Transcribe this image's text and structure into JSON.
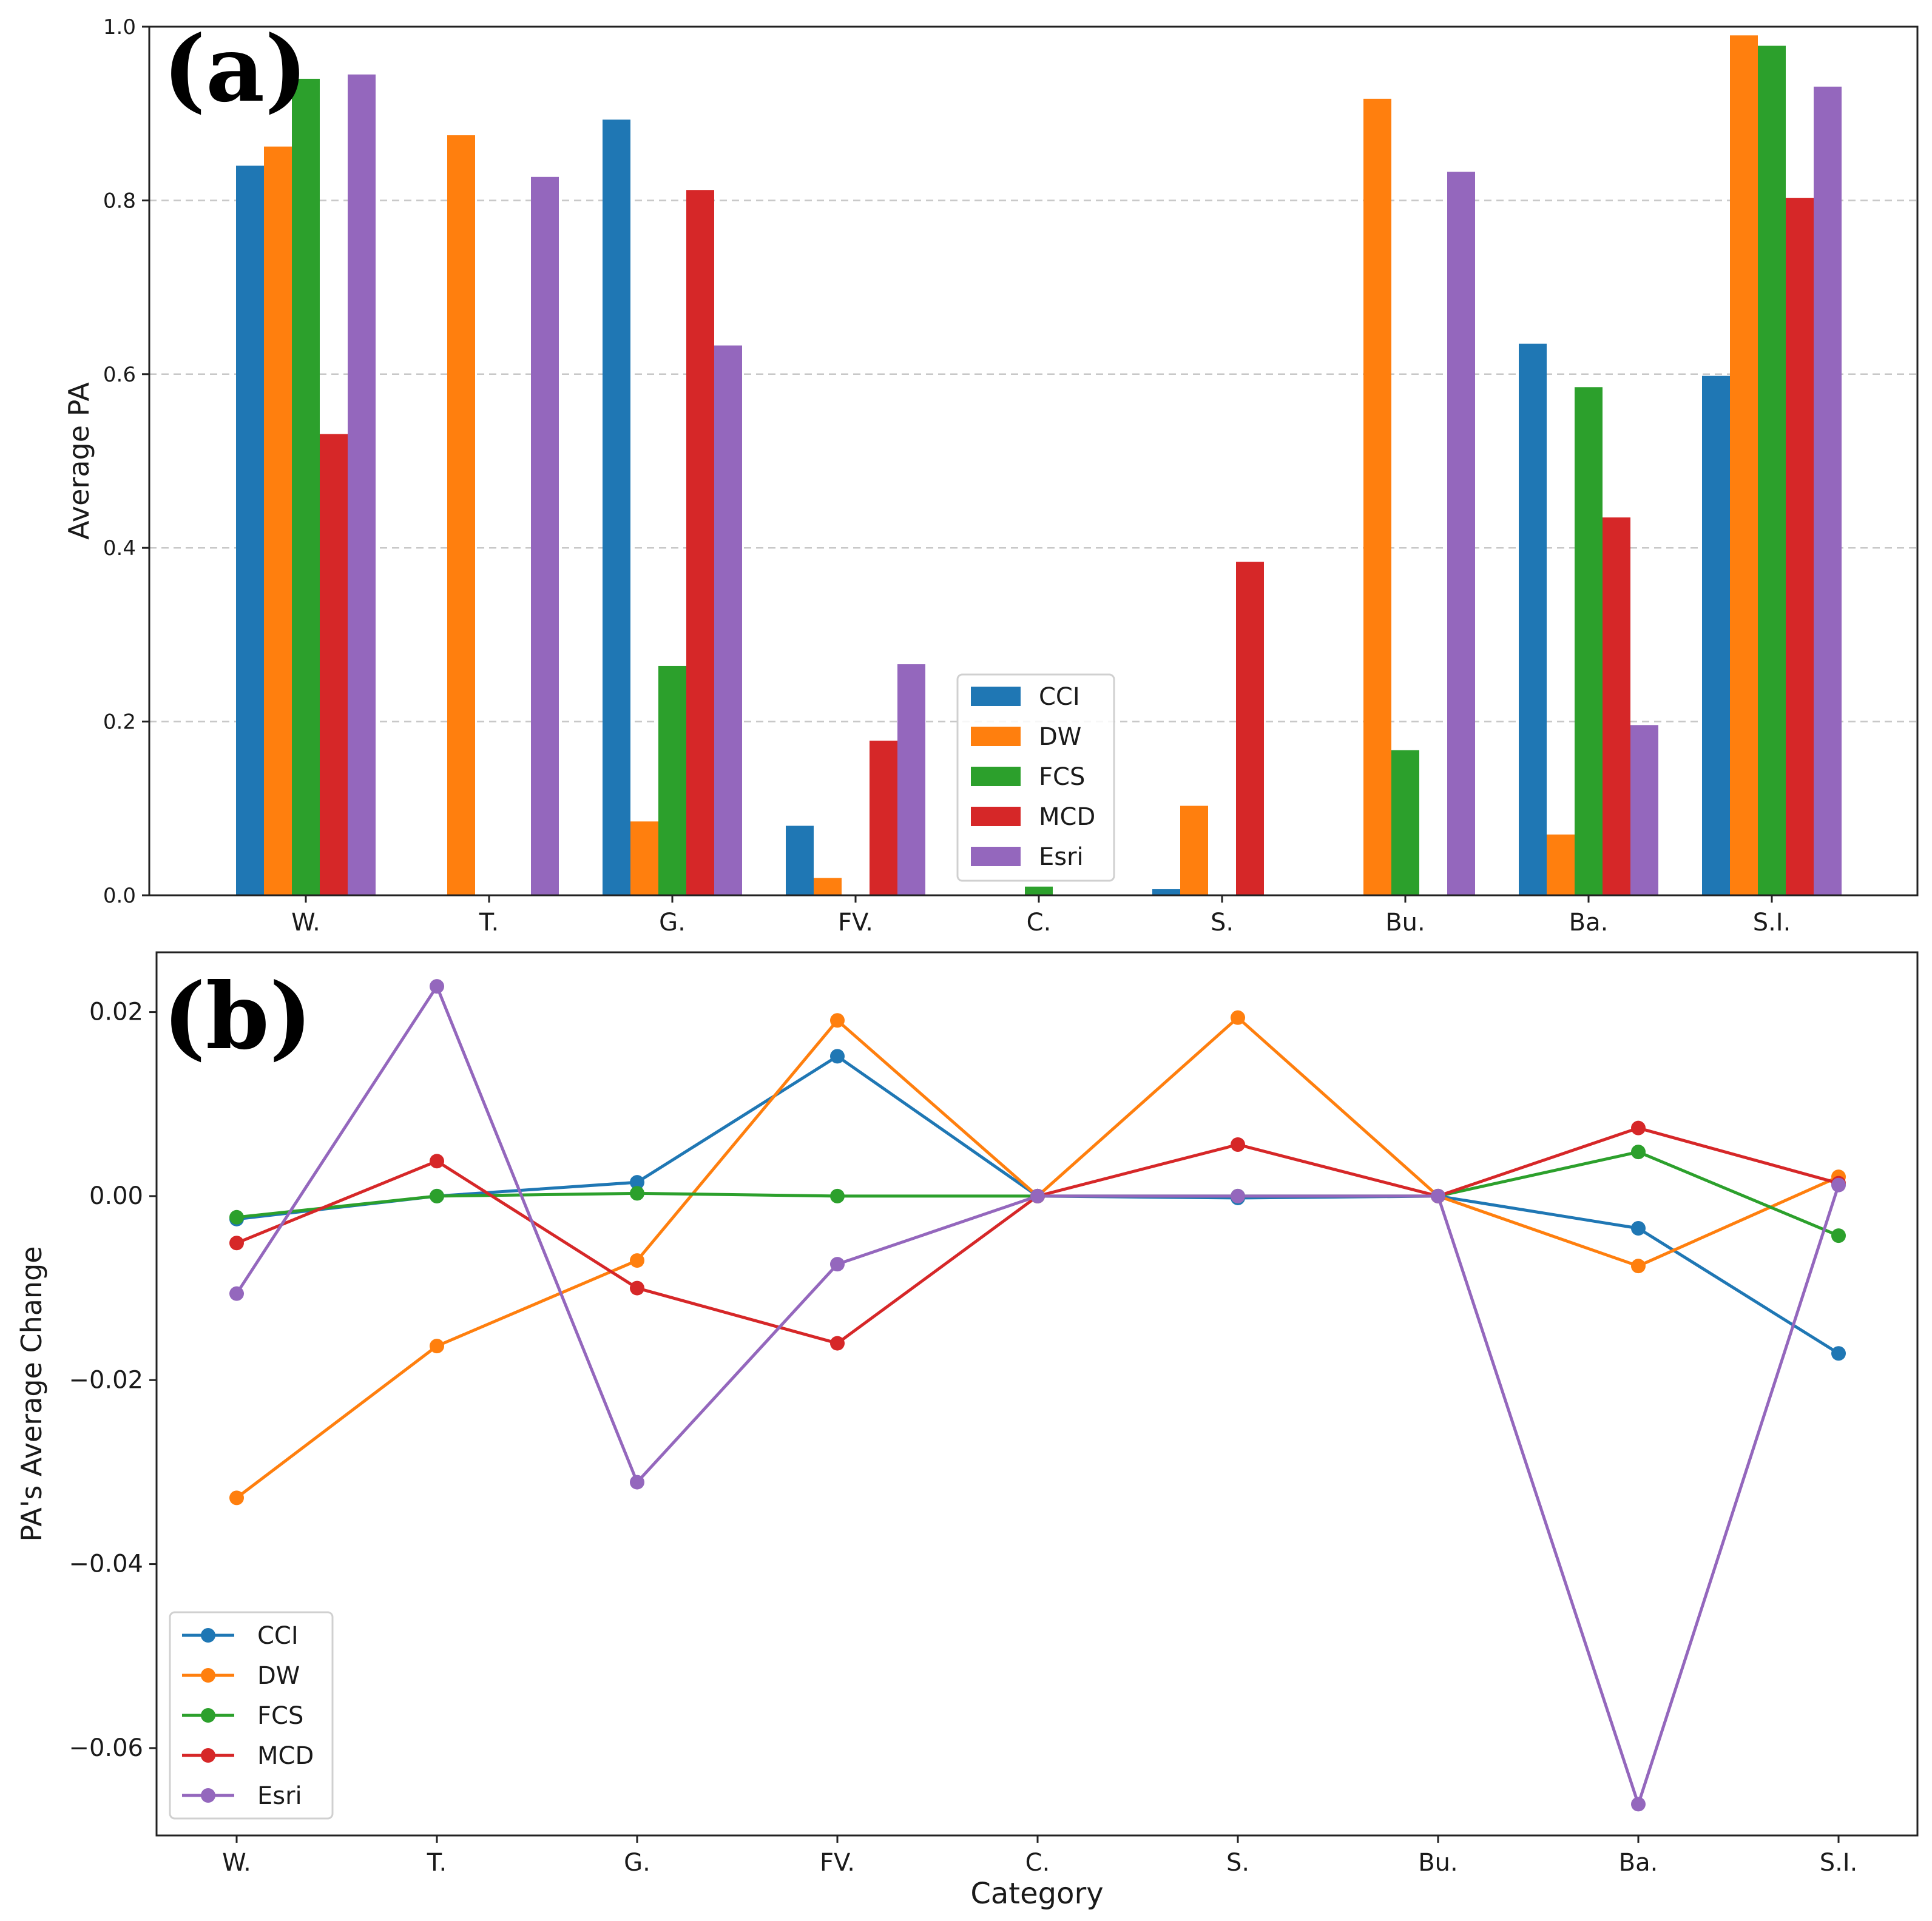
{
  "chart_data": [
    {
      "panel_label": "(a)",
      "type": "bar",
      "categories": [
        "W.",
        "T.",
        "G.",
        "FV.",
        "C.",
        "S.",
        "Bu.",
        "Ba.",
        "S.I."
      ],
      "ylabel": "Average PA",
      "xlabel": "",
      "ylim": [
        0,
        1.0
      ],
      "yticks": [
        "0.0",
        "0.2",
        "0.4",
        "0.6",
        "0.8",
        "1.0"
      ],
      "grid": "horizontal dashed",
      "legend_position": "lower center",
      "series": [
        {
          "name": "CCI",
          "color": "#1f77b4",
          "values": [
            0.84,
            0.0,
            0.893,
            0.08,
            0.0,
            0.007,
            0.0,
            0.635,
            0.598
          ]
        },
        {
          "name": "DW",
          "color": "#ff7f0e",
          "values": [
            0.862,
            0.875,
            0.085,
            0.02,
            0.0,
            0.103,
            0.917,
            0.07,
            0.99
          ]
        },
        {
          "name": "FCS",
          "color": "#2ca02c",
          "values": [
            0.94,
            0.0,
            0.264,
            0.0,
            0.01,
            0.0,
            0.167,
            0.585,
            0.978
          ]
        },
        {
          "name": "MCD",
          "color": "#d62728",
          "values": [
            0.531,
            0.0,
            0.812,
            0.178,
            0.0,
            0.384,
            0.0,
            0.435,
            0.803
          ]
        },
        {
          "name": "Esri",
          "color": "#9467bd",
          "values": [
            0.945,
            0.827,
            0.633,
            0.266,
            0.0,
            0.0,
            0.833,
            0.196,
            0.931
          ]
        }
      ]
    },
    {
      "panel_label": "(b)",
      "type": "line",
      "categories": [
        "W.",
        "T.",
        "G.",
        "FV.",
        "C.",
        "S.",
        "Bu.",
        "Ba.",
        "S.I."
      ],
      "xlabel": "Category",
      "ylabel": "PA's Average Change",
      "ylim": [
        -0.0695,
        0.0265
      ],
      "yticks": [
        "0.02",
        "0.00",
        "−0.02",
        "−0.04",
        "−0.06"
      ],
      "grid": "none",
      "legend_position": "lower left",
      "series": [
        {
          "name": "CCI",
          "color": "#1f77b4",
          "values": [
            -0.0025,
            0.0,
            0.0015,
            0.0152,
            0.0,
            -0.0002,
            0.0,
            -0.0035,
            -0.0171
          ]
        },
        {
          "name": "DW",
          "color": "#ff7f0e",
          "values": [
            -0.0328,
            -0.0163,
            -0.007,
            0.0191,
            0.0,
            0.0194,
            0.0,
            -0.0076,
            0.0021
          ]
        },
        {
          "name": "FCS",
          "color": "#2ca02c",
          "values": [
            -0.0023,
            0.0,
            0.0003,
            0.0,
            0.0,
            0.0,
            0.0,
            0.0048,
            -0.0043
          ]
        },
        {
          "name": "MCD",
          "color": "#d62728",
          "values": [
            -0.0051,
            0.0038,
            -0.01,
            -0.016,
            0.0,
            0.0056,
            0.0,
            0.0074,
            0.0014
          ]
        },
        {
          "name": "Esri",
          "color": "#9467bd",
          "values": [
            -0.0106,
            0.0228,
            -0.0311,
            -0.0074,
            0.0,
            0.0,
            0.0,
            -0.0661,
            0.0012
          ]
        }
      ]
    }
  ]
}
